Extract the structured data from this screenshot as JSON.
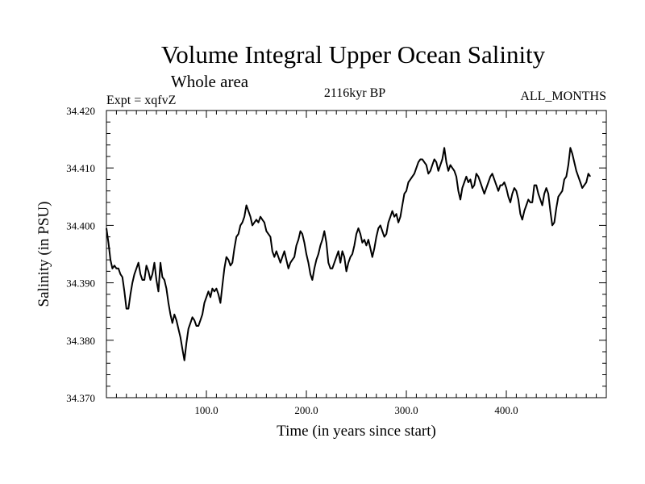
{
  "chart_data": {
    "type": "line",
    "title": "Volume Integral Upper Ocean Salinity",
    "subtitle": "Whole area",
    "experiment": "Expt = xqfvZ",
    "period": "2116kyr BP",
    "months": "ALL_MONTHS",
    "xlabel": "Time (in years since start)",
    "ylabel": "Salinity (in PSU)",
    "xlim": [
      0,
      500
    ],
    "ylim": [
      34.37,
      34.42
    ],
    "x_ticks": [
      100,
      200,
      300,
      400
    ],
    "x_tick_labels": [
      "100.0",
      "200.0",
      "300.0",
      "400.0"
    ],
    "y_ticks": [
      34.37,
      34.38,
      34.39,
      34.4,
      34.41,
      34.42
    ],
    "y_tick_labels": [
      "34.370",
      "34.380",
      "34.390",
      "34.400",
      "34.410",
      "34.420"
    ],
    "grid": false,
    "series": [
      {
        "name": "Salinity",
        "color": "#000000",
        "points": [
          [
            0,
            34.3995
          ],
          [
            2,
            34.397
          ],
          [
            4,
            34.394
          ],
          [
            6,
            34.3925
          ],
          [
            8,
            34.393
          ],
          [
            10,
            34.3925
          ],
          [
            12,
            34.3925
          ],
          [
            14,
            34.3915
          ],
          [
            16,
            34.391
          ],
          [
            18,
            34.3885
          ],
          [
            20,
            34.3855
          ],
          [
            22,
            34.3855
          ],
          [
            24,
            34.388
          ],
          [
            26,
            34.39
          ],
          [
            28,
            34.3915
          ],
          [
            30,
            34.3925
          ],
          [
            32,
            34.3935
          ],
          [
            34,
            34.3915
          ],
          [
            36,
            34.3905
          ],
          [
            38,
            34.3905
          ],
          [
            40,
            34.393
          ],
          [
            42,
            34.392
          ],
          [
            44,
            34.3905
          ],
          [
            46,
            34.3915
          ],
          [
            48,
            34.3935
          ],
          [
            50,
            34.3905
          ],
          [
            52,
            34.3885
          ],
          [
            54,
            34.3935
          ],
          [
            56,
            34.391
          ],
          [
            58,
            34.3905
          ],
          [
            60,
            34.389
          ],
          [
            62,
            34.3865
          ],
          [
            64,
            34.3845
          ],
          [
            66,
            34.383
          ],
          [
            68,
            34.3845
          ],
          [
            70,
            34.3835
          ],
          [
            72,
            34.382
          ],
          [
            74,
            34.3805
          ],
          [
            76,
            34.3785
          ],
          [
            78,
            34.3765
          ],
          [
            80,
            34.3795
          ],
          [
            82,
            34.382
          ],
          [
            84,
            34.383
          ],
          [
            86,
            34.384
          ],
          [
            88,
            34.3835
          ],
          [
            90,
            34.3825
          ],
          [
            92,
            34.3825
          ],
          [
            94,
            34.3835
          ],
          [
            96,
            34.3845
          ],
          [
            98,
            34.3865
          ],
          [
            100,
            34.3875
          ],
          [
            102,
            34.3885
          ],
          [
            104,
            34.3875
          ],
          [
            106,
            34.389
          ],
          [
            108,
            34.3885
          ],
          [
            110,
            34.389
          ],
          [
            112,
            34.388
          ],
          [
            114,
            34.3865
          ],
          [
            116,
            34.3895
          ],
          [
            118,
            34.3925
          ],
          [
            120,
            34.3945
          ],
          [
            122,
            34.394
          ],
          [
            124,
            34.393
          ],
          [
            126,
            34.3935
          ],
          [
            128,
            34.396
          ],
          [
            130,
            34.398
          ],
          [
            132,
            34.3985
          ],
          [
            134,
            34.4
          ],
          [
            136,
            34.4005
          ],
          [
            138,
            34.4015
          ],
          [
            140,
            34.4035
          ],
          [
            142,
            34.4025
          ],
          [
            144,
            34.4015
          ],
          [
            146,
            34.4
          ],
          [
            148,
            34.4005
          ],
          [
            150,
            34.401
          ],
          [
            152,
            34.4005
          ],
          [
            154,
            34.4015
          ],
          [
            156,
            34.401
          ],
          [
            158,
            34.4005
          ],
          [
            160,
            34.399
          ],
          [
            162,
            34.3985
          ],
          [
            164,
            34.398
          ],
          [
            166,
            34.3955
          ],
          [
            168,
            34.3945
          ],
          [
            170,
            34.3955
          ],
          [
            172,
            34.3945
          ],
          [
            174,
            34.3935
          ],
          [
            176,
            34.3945
          ],
          [
            178,
            34.3955
          ],
          [
            180,
            34.394
          ],
          [
            182,
            34.3925
          ],
          [
            184,
            34.3935
          ],
          [
            186,
            34.394
          ],
          [
            188,
            34.3945
          ],
          [
            190,
            34.3965
          ],
          [
            192,
            34.3975
          ],
          [
            194,
            34.399
          ],
          [
            196,
            34.3985
          ],
          [
            198,
            34.397
          ],
          [
            200,
            34.395
          ],
          [
            202,
            34.3935
          ],
          [
            204,
            34.3915
          ],
          [
            206,
            34.3905
          ],
          [
            208,
            34.3925
          ],
          [
            210,
            34.394
          ],
          [
            212,
            34.395
          ],
          [
            214,
            34.3965
          ],
          [
            216,
            34.3975
          ],
          [
            218,
            34.399
          ],
          [
            220,
            34.397
          ],
          [
            222,
            34.3935
          ],
          [
            224,
            34.3925
          ],
          [
            226,
            34.3925
          ],
          [
            228,
            34.3935
          ],
          [
            230,
            34.3945
          ],
          [
            232,
            34.3955
          ],
          [
            234,
            34.3935
          ],
          [
            236,
            34.3955
          ],
          [
            238,
            34.3945
          ],
          [
            240,
            34.392
          ],
          [
            242,
            34.3935
          ],
          [
            244,
            34.3945
          ],
          [
            246,
            34.395
          ],
          [
            248,
            34.3965
          ],
          [
            250,
            34.3985
          ],
          [
            252,
            34.3995
          ],
          [
            254,
            34.3985
          ],
          [
            256,
            34.397
          ],
          [
            258,
            34.3975
          ],
          [
            260,
            34.3965
          ],
          [
            262,
            34.3975
          ],
          [
            264,
            34.396
          ],
          [
            266,
            34.3945
          ],
          [
            268,
            34.396
          ],
          [
            270,
            34.398
          ],
          [
            272,
            34.3995
          ],
          [
            274,
            34.4
          ],
          [
            276,
            34.399
          ],
          [
            278,
            34.398
          ],
          [
            280,
            34.3985
          ],
          [
            282,
            34.4005
          ],
          [
            284,
            34.4015
          ],
          [
            286,
            34.4025
          ],
          [
            288,
            34.4015
          ],
          [
            290,
            34.402
          ],
          [
            292,
            34.4005
          ],
          [
            294,
            34.4015
          ],
          [
            296,
            34.4035
          ],
          [
            298,
            34.4055
          ],
          [
            300,
            34.406
          ],
          [
            302,
            34.4075
          ],
          [
            304,
            34.408
          ],
          [
            306,
            34.4085
          ],
          [
            308,
            34.409
          ],
          [
            310,
            34.41
          ],
          [
            312,
            34.411
          ],
          [
            314,
            34.4115
          ],
          [
            316,
            34.4115
          ],
          [
            318,
            34.411
          ],
          [
            320,
            34.4105
          ],
          [
            322,
            34.409
          ],
          [
            324,
            34.4095
          ],
          [
            326,
            34.4105
          ],
          [
            328,
            34.4115
          ],
          [
            330,
            34.411
          ],
          [
            332,
            34.4095
          ],
          [
            334,
            34.4105
          ],
          [
            336,
            34.4115
          ],
          [
            338,
            34.4135
          ],
          [
            340,
            34.411
          ],
          [
            342,
            34.4095
          ],
          [
            344,
            34.4105
          ],
          [
            346,
            34.41
          ],
          [
            348,
            34.4095
          ],
          [
            350,
            34.4085
          ],
          [
            352,
            34.406
          ],
          [
            354,
            34.4045
          ],
          [
            356,
            34.4065
          ],
          [
            358,
            34.4075
          ],
          [
            360,
            34.4085
          ],
          [
            362,
            34.4075
          ],
          [
            364,
            34.408
          ],
          [
            366,
            34.4065
          ],
          [
            368,
            34.407
          ],
          [
            370,
            34.409
          ],
          [
            372,
            34.4085
          ],
          [
            374,
            34.4075
          ],
          [
            376,
            34.4065
          ],
          [
            378,
            34.4055
          ],
          [
            380,
            34.4065
          ],
          [
            382,
            34.4075
          ],
          [
            384,
            34.4085
          ],
          [
            386,
            34.409
          ],
          [
            388,
            34.408
          ],
          [
            390,
            34.407
          ],
          [
            392,
            34.406
          ],
          [
            394,
            34.407
          ],
          [
            396,
            34.407
          ],
          [
            398,
            34.4075
          ],
          [
            400,
            34.4065
          ],
          [
            402,
            34.405
          ],
          [
            404,
            34.404
          ],
          [
            406,
            34.4055
          ],
          [
            408,
            34.4065
          ],
          [
            410,
            34.406
          ],
          [
            412,
            34.4045
          ],
          [
            414,
            34.402
          ],
          [
            416,
            34.401
          ],
          [
            418,
            34.4025
          ],
          [
            420,
            34.4035
          ],
          [
            422,
            34.4045
          ],
          [
            424,
            34.404
          ],
          [
            426,
            34.404
          ],
          [
            428,
            34.407
          ],
          [
            430,
            34.407
          ],
          [
            432,
            34.4055
          ],
          [
            434,
            34.4045
          ],
          [
            436,
            34.4035
          ],
          [
            438,
            34.4055
          ],
          [
            440,
            34.4065
          ],
          [
            442,
            34.4055
          ],
          [
            444,
            34.4025
          ],
          [
            446,
            34.4
          ],
          [
            448,
            34.4005
          ],
          [
            450,
            34.403
          ],
          [
            452,
            34.405
          ],
          [
            454,
            34.4055
          ],
          [
            456,
            34.406
          ],
          [
            458,
            34.408
          ],
          [
            460,
            34.4085
          ],
          [
            462,
            34.4105
          ],
          [
            464,
            34.4135
          ],
          [
            466,
            34.4125
          ],
          [
            468,
            34.411
          ],
          [
            470,
            34.4095
          ],
          [
            472,
            34.4085
          ],
          [
            474,
            34.4075
          ],
          [
            476,
            34.4065
          ],
          [
            478,
            34.407
          ],
          [
            480,
            34.4075
          ],
          [
            482,
            34.409
          ],
          [
            484,
            34.4085
          ]
        ]
      }
    ]
  }
}
